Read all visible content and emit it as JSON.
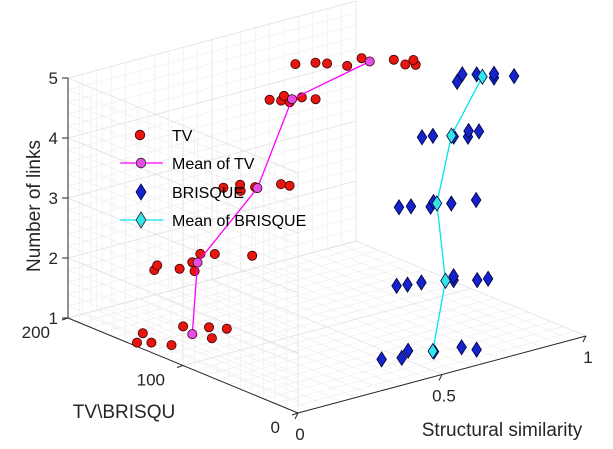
{
  "chart_data": {
    "type": "scatter",
    "view": "3d",
    "xlabel": "Structural similarity",
    "ylabel": "TV\\BRISQU",
    "zlabel": "Number of links",
    "xlim": [
      0,
      1
    ],
    "ylim": [
      0,
      200
    ],
    "zlim": [
      1,
      5
    ],
    "x_ticks": [
      {
        "value": 0,
        "label": "0"
      },
      {
        "value": 0.5,
        "label": "0.5"
      },
      {
        "value": 1,
        "label": "1"
      }
    ],
    "y_ticks": [
      {
        "value": 0,
        "label": "0"
      },
      {
        "value": 100,
        "label": "100"
      },
      {
        "value": 200,
        "label": "200"
      }
    ],
    "z_ticks": [
      {
        "value": 1,
        "label": "1"
      },
      {
        "value": 2,
        "label": "2"
      },
      {
        "value": 3,
        "label": "3"
      },
      {
        "value": 4,
        "label": "4"
      },
      {
        "value": 5,
        "label": "5"
      }
    ],
    "grid": true,
    "legend_position": "left",
    "colors": {
      "tv": "#e8150f",
      "tv_mean_line": "#ff00ff",
      "tv_mean_marker": "#e64de6",
      "brisque": "#1424c8",
      "brisque_mean_line": "#00e5ee",
      "brisque_mean_marker": "#33e6e6"
    },
    "series": [
      {
        "name": "TV",
        "marker": "circle",
        "color": "#e8150f",
        "points": [
          [
            0.02,
            145,
            1
          ],
          [
            0.05,
            140,
            1
          ],
          [
            0.08,
            155,
            1
          ],
          [
            0.08,
            130,
            1
          ],
          [
            0.2,
            150,
            1
          ],
          [
            0.2,
            125,
            1
          ],
          [
            0.25,
            140,
            1
          ],
          [
            0.28,
            132,
            1
          ],
          [
            0.12,
            155,
            2
          ],
          [
            0.15,
            160,
            2
          ],
          [
            0.18,
            148,
            2
          ],
          [
            0.2,
            140,
            2
          ],
          [
            0.24,
            152,
            2
          ],
          [
            0.3,
            160,
            2
          ],
          [
            0.33,
            155,
            2
          ],
          [
            0.4,
            140,
            2
          ],
          [
            0.38,
            160,
            3
          ],
          [
            0.4,
            150,
            3
          ],
          [
            0.43,
            158,
            3
          ],
          [
            0.45,
            150,
            3
          ],
          [
            0.52,
            145,
            3
          ],
          [
            0.53,
            140,
            3
          ],
          [
            0.62,
            180,
            4
          ],
          [
            0.64,
            175,
            4
          ],
          [
            0.65,
            170,
            4
          ],
          [
            0.67,
            180,
            4
          ],
          [
            0.7,
            172,
            4
          ],
          [
            0.72,
            165,
            4
          ],
          [
            0.55,
            140,
            5
          ],
          [
            0.6,
            135,
            5
          ],
          [
            0.62,
            130,
            5
          ],
          [
            0.65,
            120,
            5
          ],
          [
            0.72,
            125,
            5
          ],
          [
            0.78,
            112,
            5
          ],
          [
            0.78,
            102,
            5
          ],
          [
            0.8,
            98,
            5
          ],
          [
            0.82,
            105,
            5
          ]
        ]
      },
      {
        "name": "Mean of TV",
        "marker": "circle",
        "line": true,
        "color": "#ff00ff",
        "points": [
          [
            0.18,
            137,
            1
          ],
          [
            0.25,
            150,
            2
          ],
          [
            0.45,
            148,
            3
          ],
          [
            0.67,
            173,
            4
          ],
          [
            0.72,
            118,
            5
          ]
        ]
      },
      {
        "name": "BRISQUE",
        "marker": "diamond",
        "color": "#1424c8",
        "points": [
          [
            0.45,
            40,
            1
          ],
          [
            0.5,
            35,
            1
          ],
          [
            0.55,
            42,
            1
          ],
          [
            0.6,
            32,
            1
          ],
          [
            0.68,
            28,
            1
          ],
          [
            0.7,
            20,
            1
          ],
          [
            0.55,
            52,
            2
          ],
          [
            0.58,
            50,
            2
          ],
          [
            0.62,
            48,
            2
          ],
          [
            0.7,
            40,
            2
          ],
          [
            0.72,
            45,
            2
          ],
          [
            0.75,
            32,
            2
          ],
          [
            0.78,
            30,
            2
          ],
          [
            0.65,
            75,
            3
          ],
          [
            0.68,
            72,
            3
          ],
          [
            0.72,
            65,
            3
          ],
          [
            0.75,
            70,
            3
          ],
          [
            0.78,
            62,
            3
          ],
          [
            0.85,
            58,
            3
          ],
          [
            0.75,
            80,
            4
          ],
          [
            0.78,
            78,
            4
          ],
          [
            0.82,
            70,
            4
          ],
          [
            0.85,
            65,
            4
          ],
          [
            0.88,
            72,
            4
          ],
          [
            0.9,
            68,
            4
          ],
          [
            0.8,
            62,
            5
          ],
          [
            0.85,
            70,
            5
          ],
          [
            0.88,
            65,
            5
          ],
          [
            0.9,
            55,
            5
          ],
          [
            0.92,
            60,
            5
          ],
          [
            0.95,
            50,
            5
          ]
        ]
      },
      {
        "name": "Mean of BRISQUE",
        "marker": "diamond",
        "line": true,
        "color": "#00e5ee",
        "points": [
          [
            0.6,
            33,
            1
          ],
          [
            0.68,
            42,
            2
          ],
          [
            0.75,
            67,
            3
          ],
          [
            0.82,
            72,
            4
          ],
          [
            0.88,
            60,
            5
          ]
        ]
      }
    ]
  }
}
